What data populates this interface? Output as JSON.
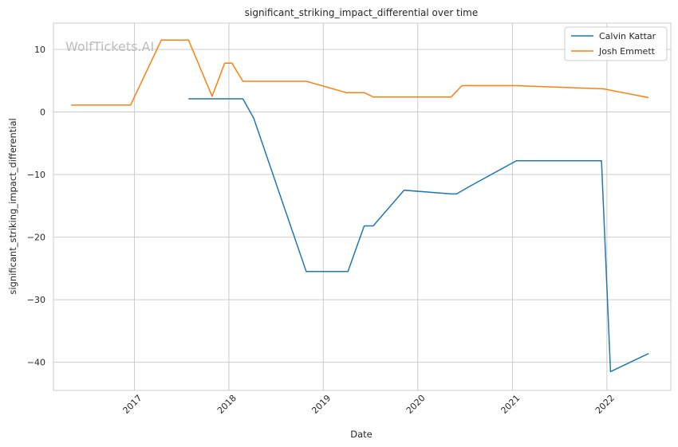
{
  "watermark": "WolfTickets.AI",
  "chart_data": {
    "type": "line",
    "title": "significant_striking_impact_differential over time",
    "xlabel": "Date",
    "ylabel": "significant_striking_impact_differential",
    "x_ticks": [
      "2017",
      "2018",
      "2019",
      "2020",
      "2021",
      "2022"
    ],
    "y_ticks": [
      10,
      0,
      -10,
      -20,
      -30,
      -40
    ],
    "xlim": [
      "2016-02-23",
      "2022-09-05"
    ],
    "ylim": [
      -44.5,
      14.2
    ],
    "grid": true,
    "legend_position": "top-right",
    "series": [
      {
        "name": "Calvin Kattar",
        "color": "#1f77b4",
        "points": [
          [
            "2017-07-29",
            2.1
          ],
          [
            "2018-02-24",
            2.1
          ],
          [
            "2018-04-07",
            -1.0
          ],
          [
            "2018-10-27",
            -25.5
          ],
          [
            "2019-04-06",
            -25.5
          ],
          [
            "2019-06-08",
            -18.2
          ],
          [
            "2019-07-13",
            -18.2
          ],
          [
            "2019-11-09",
            -12.5
          ],
          [
            "2020-05-09",
            -13.1
          ],
          [
            "2020-05-30",
            -13.1
          ],
          [
            "2020-07-19",
            -11.9
          ],
          [
            "2021-01-16",
            -7.8
          ],
          [
            "2021-12-11",
            -7.8
          ],
          [
            "2022-01-15",
            -41.5
          ],
          [
            "2022-06-11",
            -38.6
          ]
        ]
      },
      {
        "name": "Josh Emmett",
        "color": "#ff7f0e",
        "points": [
          [
            "2016-05-01",
            1.1
          ],
          [
            "2016-12-17",
            1.1
          ],
          [
            "2017-04-15",
            11.5
          ],
          [
            "2017-07-29",
            11.5
          ],
          [
            "2017-10-28",
            2.5
          ],
          [
            "2017-12-16",
            7.8
          ],
          [
            "2018-01-13",
            7.8
          ],
          [
            "2018-02-24",
            4.9
          ],
          [
            "2018-10-27",
            4.9
          ],
          [
            "2019-03-30",
            3.1
          ],
          [
            "2019-06-08",
            3.1
          ],
          [
            "2019-07-13",
            2.4
          ],
          [
            "2020-05-09",
            2.4
          ],
          [
            "2020-06-20",
            4.2
          ],
          [
            "2021-01-16",
            4.2
          ],
          [
            "2021-12-18",
            3.7
          ],
          [
            "2022-06-11",
            2.3
          ]
        ]
      }
    ]
  }
}
